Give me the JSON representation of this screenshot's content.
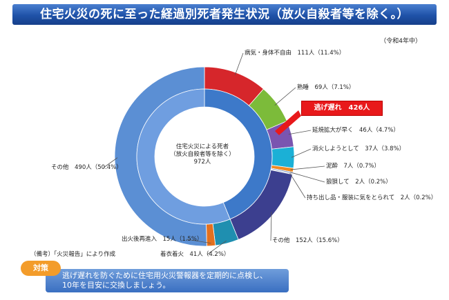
{
  "title": "住宅火災の死に至った経過別死者発生状況（放火自殺者等を除く。）",
  "date_note": "（令和4年中）",
  "center_label": [
    "住宅火災による死者",
    "（放火自殺者等を除く）",
    "972人"
  ],
  "highlight_label": "逃げ遅れ　426人（43.8%）",
  "source_note": "（備考）「火災報告」により作成",
  "tip": {
    "tag": "対策",
    "text_line1": "逃げ遅れを防ぐために住宅用火災警報器を定期的に点検し、",
    "text_line2": "10年を目安に交換しましょう。"
  },
  "chart_data": {
    "type": "pie",
    "total": 972,
    "inner_ring": {
      "slices": [
        {
          "name": "逃げ遅れ",
          "value": 426,
          "percent": 43.8,
          "color": "#3d79c9"
        }
      ]
    },
    "outer_ring": {
      "slices": [
        {
          "name": "病気・身体不自由",
          "value": 111,
          "percent": 11.4,
          "color": "#d6262b",
          "label": "病気・身体不自由　111人（11.4%）"
        },
        {
          "name": "熟睡",
          "value": 69,
          "percent": 7.1,
          "color": "#7cbb3a",
          "label": "熟睡　69人（7.1%）"
        },
        {
          "name": "延焼拡大が早く",
          "value": 46,
          "percent": 4.7,
          "color": "#7a55b0",
          "label": "延焼拡大が早く　46人（4.7%）"
        },
        {
          "name": "消火しようとして",
          "value": 37,
          "percent": 3.8,
          "color": "#1bb0d6",
          "label": "消火しようとして　37人（3.8%）"
        },
        {
          "name": "泥酔",
          "value": 7,
          "percent": 0.7,
          "color": "#f08a22",
          "label": "泥酔　7人（0.7%）"
        },
        {
          "name": "狼狽して",
          "value": 2,
          "percent": 0.2,
          "color": "#4a6fb8",
          "label": "狼狽して　2人（0.2%）"
        },
        {
          "name": "持ち出し品・服装に気をとられて",
          "value": 2,
          "percent": 0.2,
          "color": "#b9c4d8",
          "label": "持ち出し品・服装に気をとられて　2人（0.2%）"
        },
        {
          "name": "その他",
          "value": 152,
          "percent": 15.6,
          "color": "#3c3f8f",
          "label": "その他　152人（15.6%）"
        },
        {
          "name": "着衣着火",
          "value": 41,
          "percent": 4.2,
          "color": "#1f8fb0",
          "label": "着衣着火　41人（4.2%）"
        },
        {
          "name": "出火後再進入",
          "value": 15,
          "percent": 1.5,
          "color": "#e4701e",
          "label": "出火後再進入　15人（1.5%）"
        },
        {
          "name": "その他",
          "value": 490,
          "percent": 50.4,
          "color": "#5b8fd4",
          "label": "その他　490人（50.4%）"
        }
      ]
    }
  }
}
